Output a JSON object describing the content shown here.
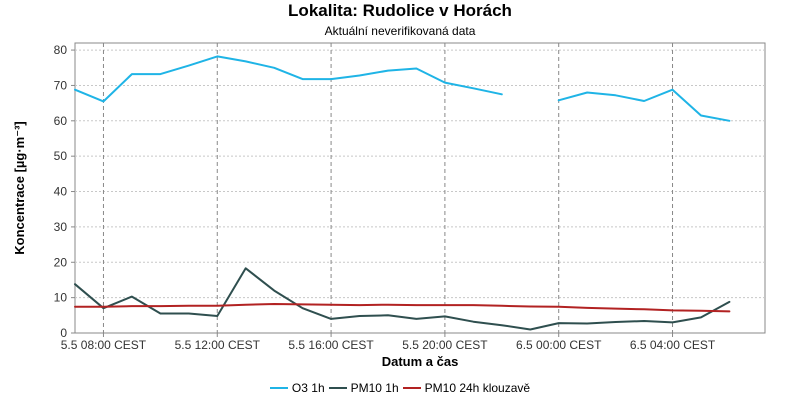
{
  "chart_data": {
    "type": "line",
    "title": "Lokalita: Rudolice v Horách",
    "subtitle": "Aktuální neverifikovaná data",
    "xlabel": "Datum a čas",
    "ylabel": "Koncentrace [µg·m⁻³]",
    "ylim": [
      0,
      82
    ],
    "yticks": [
      0,
      10,
      20,
      30,
      40,
      50,
      60,
      70,
      80
    ],
    "xlim": [
      7,
      31.25
    ],
    "xticks": [
      {
        "label": "5.5 08:00 CEST",
        "hour": 8
      },
      {
        "label": "5.5 12:00 CEST",
        "hour": 12
      },
      {
        "label": "5.5 16:00 CEST",
        "hour": 16
      },
      {
        "label": "5.5 20:00 CEST",
        "hour": 20
      },
      {
        "label": "6.5 00:00 CEST",
        "hour": 24
      },
      {
        "label": "6.5 04:00 CEST",
        "hour": 28
      }
    ],
    "x_hours": [
      7,
      8,
      9,
      10,
      11,
      12,
      13,
      14,
      15,
      16,
      17,
      18,
      19,
      20,
      21,
      22,
      23,
      24,
      25,
      26,
      27,
      28,
      29,
      30
    ],
    "grid": true,
    "legend_position": "bottom",
    "series": [
      {
        "name": "O3 1h",
        "color": "#1fb4e6",
        "values": [
          68.8,
          65.5,
          73.2,
          73.2,
          75.6,
          78.2,
          76.8,
          75.0,
          71.8,
          71.8,
          72.8,
          74.2,
          74.8,
          70.8,
          69.2,
          67.5,
          null,
          65.8,
          68.0,
          67.2,
          65.6,
          68.8,
          61.5,
          60.0
        ]
      },
      {
        "name": "PM10 1h",
        "color": "#2f4f4f",
        "values": [
          13.8,
          7.0,
          10.3,
          5.5,
          5.5,
          4.8,
          18.3,
          12.0,
          7.0,
          4.0,
          4.8,
          5.0,
          4.0,
          4.7,
          3.2,
          2.2,
          1.0,
          2.8,
          2.7,
          3.1,
          3.4,
          3.0,
          4.4,
          8.8
        ]
      },
      {
        "name": "PM10 24h klouzavě",
        "color": "#b22222",
        "values": [
          7.4,
          7.4,
          7.6,
          7.6,
          7.7,
          7.7,
          8.0,
          8.2,
          8.1,
          8.0,
          7.9,
          8.0,
          7.9,
          7.9,
          7.9,
          7.7,
          7.5,
          7.4,
          7.1,
          6.9,
          6.7,
          6.4,
          6.3,
          6.1
        ]
      }
    ]
  }
}
